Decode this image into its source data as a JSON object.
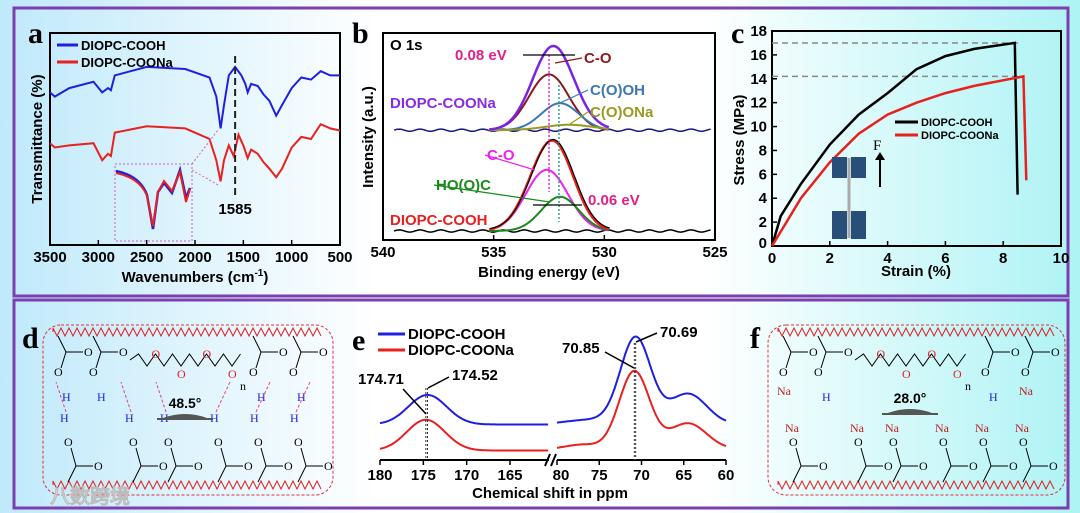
{
  "panel_labels": [
    "a",
    "b",
    "c",
    "d",
    "e",
    "f"
  ],
  "colors": {
    "blue": "#1f1fe0",
    "red": "#e8201e",
    "frame": "#7b3fb0"
  },
  "chart_data": [
    {
      "id": "a",
      "type": "line",
      "xlabel": "Wavenumbers (cm",
      "xlabel_sup": "-1",
      "xlabel_end": ")",
      "ylabel": "Transmittance (%)",
      "xlim": [
        3500,
        500
      ],
      "ylim": [
        0,
        1
      ],
      "xticks": [
        3500,
        3000,
        2500,
        2000,
        1500,
        1000,
        500
      ],
      "annotation": "1585",
      "annotation_x": 1585,
      "series": [
        {
          "name": "DIOPC-COOH",
          "color": "#1f1fe0",
          "points": [
            [
              3500,
              0.72
            ],
            [
              3450,
              0.7
            ],
            [
              3300,
              0.74
            ],
            [
              3050,
              0.77
            ],
            [
              2960,
              0.72
            ],
            [
              2900,
              0.74
            ],
            [
              2870,
              0.73
            ],
            [
              2830,
              0.8
            ],
            [
              2500,
              0.84
            ],
            [
              2100,
              0.83
            ],
            [
              1850,
              0.79
            ],
            [
              1780,
              0.7
            ],
            [
              1735,
              0.55
            ],
            [
              1700,
              0.66
            ],
            [
              1650,
              0.8
            ],
            [
              1585,
              0.84
            ],
            [
              1520,
              0.8
            ],
            [
              1480,
              0.76
            ],
            [
              1455,
              0.72
            ],
            [
              1420,
              0.76
            ],
            [
              1350,
              0.75
            ],
            [
              1290,
              0.71
            ],
            [
              1230,
              0.68
            ],
            [
              1160,
              0.61
            ],
            [
              1100,
              0.66
            ],
            [
              1000,
              0.74
            ],
            [
              900,
              0.79
            ],
            [
              800,
              0.78
            ],
            [
              700,
              0.82
            ],
            [
              600,
              0.8
            ],
            [
              500,
              0.8
            ]
          ]
        },
        {
          "name": "DIOPC-COONa",
          "color": "#e8201e",
          "points": [
            [
              3500,
              0.48
            ],
            [
              3450,
              0.46
            ],
            [
              3300,
              0.47
            ],
            [
              3050,
              0.48
            ],
            [
              2960,
              0.4
            ],
            [
              2900,
              0.43
            ],
            [
              2870,
              0.42
            ],
            [
              2830,
              0.53
            ],
            [
              2500,
              0.56
            ],
            [
              2100,
              0.55
            ],
            [
              1850,
              0.5
            ],
            [
              1780,
              0.4
            ],
            [
              1735,
              0.3
            ],
            [
              1700,
              0.4
            ],
            [
              1650,
              0.47
            ],
            [
              1600,
              0.42
            ],
            [
              1550,
              0.52
            ],
            [
              1500,
              0.47
            ],
            [
              1455,
              0.41
            ],
            [
              1420,
              0.45
            ],
            [
              1350,
              0.43
            ],
            [
              1290,
              0.39
            ],
            [
              1230,
              0.36
            ],
            [
              1160,
              0.32
            ],
            [
              1100,
              0.36
            ],
            [
              1000,
              0.46
            ],
            [
              900,
              0.51
            ],
            [
              800,
              0.5
            ],
            [
              700,
              0.57
            ],
            [
              600,
              0.55
            ],
            [
              500,
              0.54
            ]
          ]
        }
      ]
    },
    {
      "id": "b",
      "type": "line",
      "title": "O 1s",
      "xlabel": "Binding energy (eV)",
      "ylabel": "Intensity (a.u.)",
      "xlim": [
        540,
        525
      ],
      "ylim": [
        -0.5,
        11
      ],
      "xticks": [
        540,
        535,
        530,
        525
      ],
      "samples": [
        {
          "name": "DIOPC-COONa",
          "baseline": 5.6,
          "label_color": "#8a2be2",
          "envelope_color": "#7a22e8",
          "components": [
            {
              "name": "C-O",
              "center": 532.5,
              "amp": 3.1,
              "sigma": 0.9,
              "color": "#8b1a1a"
            },
            {
              "name": "C(O)OH",
              "center": 532.0,
              "amp": 1.5,
              "sigma": 0.85,
              "color": "#3a78b0"
            },
            {
              "name": "C(O)ONa",
              "center": 531.6,
              "amp": 0.3,
              "sigma": 1.1,
              "color": "#9a9a20"
            }
          ],
          "shift_label": "0.08 eV"
        },
        {
          "name": "DIOPC-COOH",
          "baseline": 0,
          "label_color": "#e8201e",
          "envelope_color": "#e8201e",
          "components": [
            {
              "name": "C-O",
              "center": 532.6,
              "amp": 3.4,
              "sigma": 0.95,
              "color": "#ee22ee"
            },
            {
              "name": "HO(O)C",
              "center": 532.0,
              "amp": 1.9,
              "sigma": 0.85,
              "color": "#1a8a1a"
            }
          ],
          "shift_label": "0.06 eV"
        }
      ]
    },
    {
      "id": "c",
      "type": "line",
      "xlabel": "Strain (%)",
      "ylabel": "Stress (MPa)",
      "xlim": [
        0,
        10
      ],
      "ylim": [
        0,
        18
      ],
      "xticks": [
        0,
        2,
        4,
        6,
        8,
        10
      ],
      "yticks": [
        0,
        2,
        4,
        6,
        8,
        10,
        12,
        14,
        16,
        18
      ],
      "hlines": [
        17,
        14.2
      ],
      "force_label": "F",
      "series": [
        {
          "name": "DIOPC-COOH",
          "color": "#000000",
          "points": [
            [
              0,
              0
            ],
            [
              0.3,
              2.5
            ],
            [
              1,
              5.2
            ],
            [
              2,
              8.5
            ],
            [
              3,
              11
            ],
            [
              4,
              12.8
            ],
            [
              5,
              14.8
            ],
            [
              6,
              15.9
            ],
            [
              7,
              16.5
            ],
            [
              8.4,
              17
            ],
            [
              8.5,
              4.3
            ]
          ]
        },
        {
          "name": "DIOPC-COONa",
          "color": "#e8201e",
          "points": [
            [
              0,
              0
            ],
            [
              0.5,
              2
            ],
            [
              1,
              4
            ],
            [
              2,
              7
            ],
            [
              3,
              9.4
            ],
            [
              4,
              11
            ],
            [
              5,
              12
            ],
            [
              6,
              12.8
            ],
            [
              7,
              13.4
            ],
            [
              8.7,
              14.2
            ],
            [
              8.8,
              5.5
            ]
          ]
        }
      ]
    },
    {
      "id": "e",
      "type": "line",
      "xlabel": "Chemical shift in ppm",
      "xlim_left": [
        180,
        160.5
      ],
      "xlim_right": [
        80,
        60
      ],
      "ylim": [
        0,
        12
      ],
      "xticks_left": [
        180,
        175,
        170,
        165
      ],
      "xticks_right": [
        80,
        75,
        70,
        65,
        60
      ],
      "series": [
        {
          "name": "DIOPC-COOH",
          "color": "#1f1fe0",
          "left": {
            "baseline": 3.0,
            "peaks": [
              [
                174.52,
                2.5,
                2.2
              ]
            ]
          },
          "right": {
            "baseline": 3.0,
            "peaks": [
              [
                70.69,
                7.3,
                1.8
              ],
              [
                64.5,
                2.6,
                2.2
              ],
              [
                76,
                0.4,
                3
              ]
            ]
          }
        },
        {
          "name": "DIOPC-COONa",
          "color": "#e8201e",
          "left": {
            "baseline": 0.8,
            "peaks": [
              [
                174.71,
                2.6,
                2.2
              ]
            ]
          },
          "right": {
            "baseline": 0.9,
            "peaks": [
              [
                70.85,
                6.6,
                1.8
              ],
              [
                64.5,
                2.2,
                2.2
              ],
              [
                77,
                0.4,
                2
              ]
            ]
          }
        }
      ],
      "annotations": [
        "174.71",
        "174.52",
        "70.85",
        "70.69"
      ]
    }
  ],
  "diagram_d": {
    "contact_angle": "48.5°",
    "repeat": "n"
  },
  "diagram_f": {
    "contact_angle": "28.0°",
    "repeat": "n"
  },
  "watermark": "八数跨境"
}
